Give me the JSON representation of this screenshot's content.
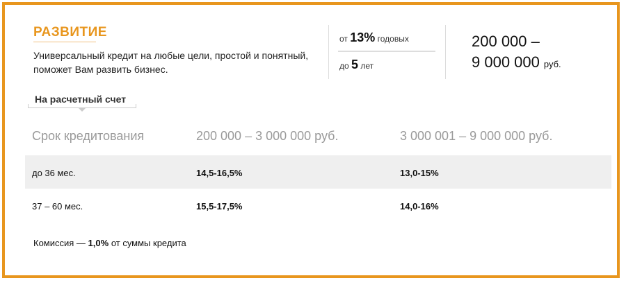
{
  "product": {
    "title": "РАЗВИТИЕ",
    "description_line1": "Универсальный кредит на любые цели, простой и понятный,",
    "description_line2": "поможет Вам развить бизнес."
  },
  "facts": {
    "rate_prefix": "от",
    "rate_value": "13%",
    "rate_suffix": "годовых",
    "term_prefix": "до",
    "term_value": "5",
    "term_suffix": "лет"
  },
  "amount": {
    "line1": "200 000 –",
    "line2": "9 000 000",
    "currency": "руб."
  },
  "tab": {
    "label": "На расчетный счет"
  },
  "table": {
    "headers": [
      "Срок кредитования",
      "200 000 – 3 000 000 руб.",
      "3 000 001 – 9 000 000 руб."
    ],
    "rows": [
      {
        "term": "до 36 мес.",
        "rate1": "14,5-16,5%",
        "rate2": "13,0-15%"
      },
      {
        "term": "37 – 60 мес.",
        "rate1": "15,5-17,5%",
        "rate2": "14,0-16%"
      }
    ]
  },
  "commission": {
    "prefix": "Комиссия —",
    "value": "1,0%",
    "suffix": "от суммы кредита"
  },
  "colors": {
    "accent": "#e8961e",
    "row_shade": "#efefef",
    "header_text": "#9a9a9a"
  }
}
